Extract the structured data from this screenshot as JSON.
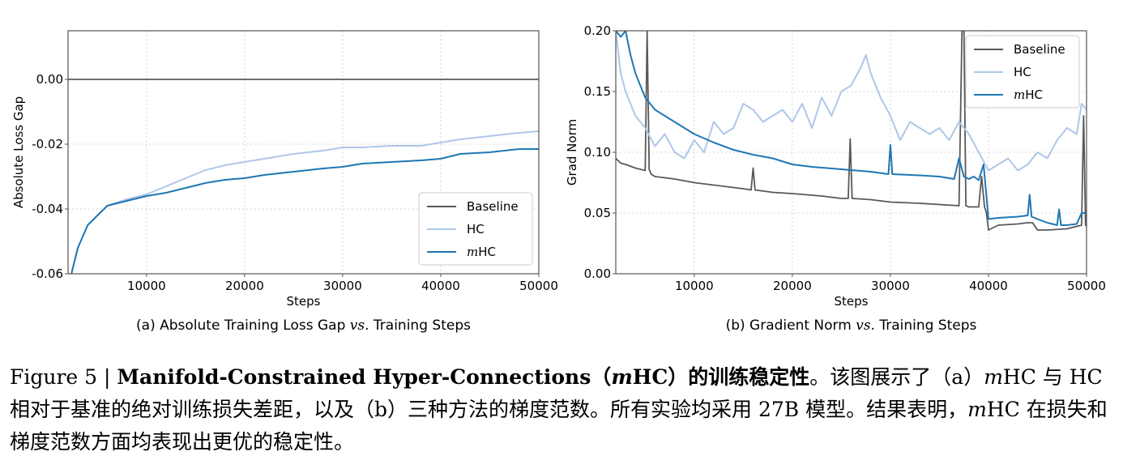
{
  "colors": {
    "baseline": "#595959",
    "hc": "#aec7e8",
    "mhc": "#1f77b4",
    "grid": "#d4d4d4",
    "axis": "#555555"
  },
  "chart_data": [
    {
      "type": "line",
      "sublabel_prefix": "(a) Absolute Training Loss Gap",
      "sublabel_vs": "vs.",
      "sublabel_suffix": "Training Steps",
      "xlabel": "Steps",
      "ylabel": "Absolute Loss Gap",
      "xlim": [
        2000,
        50000
      ],
      "ylim": [
        -0.06,
        0.015
      ],
      "xticks": [
        10000,
        20000,
        30000,
        40000,
        50000
      ],
      "xtick_labels": [
        "10000",
        "20000",
        "30000",
        "40000",
        "50000"
      ],
      "yticks": [
        0.0,
        -0.02,
        -0.04,
        -0.06
      ],
      "ytick_labels": [
        "0.00",
        "-0.02",
        "-0.04",
        "-0.06"
      ],
      "grid": true,
      "legend_position": "lower-right",
      "legend": [
        {
          "series": "Baseline",
          "label": "Baseline"
        },
        {
          "series": "HC",
          "label": "HC"
        },
        {
          "series": "mHC",
          "prefix": "m",
          "label": "HC"
        }
      ],
      "series": [
        {
          "name": "Baseline",
          "color": "baseline",
          "x": [
            2000,
            50000
          ],
          "y": [
            0.0,
            0.0
          ]
        },
        {
          "name": "HC",
          "color": "hc",
          "x": [
            2000,
            2500,
            3000,
            4000,
            5000,
            6000,
            8000,
            10000,
            12000,
            14000,
            16000,
            18000,
            20000,
            22000,
            25000,
            28000,
            30000,
            32000,
            35000,
            38000,
            40000,
            42000,
            45000,
            48000,
            50000
          ],
          "y": [
            -0.0645,
            -0.058,
            -0.052,
            -0.045,
            -0.042,
            -0.039,
            -0.037,
            -0.0355,
            -0.033,
            -0.0305,
            -0.028,
            -0.0265,
            -0.0255,
            -0.0245,
            -0.023,
            -0.022,
            -0.021,
            -0.021,
            -0.0205,
            -0.0205,
            -0.0195,
            -0.0185,
            -0.0175,
            -0.0165,
            -0.016
          ]
        },
        {
          "name": "mHC",
          "color": "mhc",
          "x": [
            2000,
            2500,
            3000,
            4000,
            5000,
            6000,
            8000,
            10000,
            12000,
            14000,
            16000,
            18000,
            20000,
            22000,
            25000,
            28000,
            30000,
            32000,
            35000,
            38000,
            40000,
            42000,
            45000,
            48000,
            50000
          ],
          "y": [
            -0.0645,
            -0.058,
            -0.052,
            -0.045,
            -0.042,
            -0.039,
            -0.0375,
            -0.036,
            -0.035,
            -0.0335,
            -0.032,
            -0.031,
            -0.0305,
            -0.0295,
            -0.0285,
            -0.0275,
            -0.027,
            -0.026,
            -0.0255,
            -0.025,
            -0.0245,
            -0.023,
            -0.0225,
            -0.0215,
            -0.0215
          ]
        }
      ]
    },
    {
      "type": "line",
      "sublabel_prefix": "(b) Gradient Norm",
      "sublabel_vs": "vs.",
      "sublabel_suffix": "Training Steps",
      "xlabel": "Steps",
      "ylabel": "Grad Norm",
      "xlim": [
        2000,
        50000
      ],
      "ylim": [
        0.0,
        0.2
      ],
      "xticks": [
        10000,
        20000,
        30000,
        40000,
        50000
      ],
      "xtick_labels": [
        "10000",
        "20000",
        "30000",
        "40000",
        "50000"
      ],
      "yticks": [
        0.0,
        0.05,
        0.1,
        0.15,
        0.2
      ],
      "ytick_labels": [
        "0.00",
        "0.05",
        "0.10",
        "0.15",
        "0.20"
      ],
      "grid": true,
      "legend_position": "upper-right",
      "legend": [
        {
          "series": "Baseline",
          "label": "Baseline"
        },
        {
          "series": "HC",
          "label": "HC"
        },
        {
          "series": "mHC",
          "prefix": "m",
          "label": "HC"
        }
      ],
      "series": [
        {
          "name": "Baseline",
          "color": "baseline",
          "x": [
            2000,
            2500,
            3000,
            4000,
            5000,
            5200,
            5400,
            5600,
            5800,
            6000,
            8000,
            10000,
            12000,
            15000,
            15800,
            16000,
            16200,
            18000,
            20000,
            23000,
            25000,
            25700,
            25900,
            26100,
            28000,
            30000,
            33000,
            35000,
            37000,
            37300,
            37500,
            37700,
            38000,
            39000,
            39300,
            39600,
            39800,
            40000,
            41000,
            43000,
            44000,
            44500,
            45000,
            46000,
            48000,
            49500,
            49700,
            49900,
            50000
          ],
          "y": [
            0.095,
            0.091,
            0.09,
            0.087,
            0.085,
            0.2,
            0.086,
            0.082,
            0.081,
            0.08,
            0.078,
            0.075,
            0.073,
            0.07,
            0.069,
            0.087,
            0.069,
            0.067,
            0.066,
            0.064,
            0.062,
            0.062,
            0.111,
            0.062,
            0.061,
            0.059,
            0.058,
            0.057,
            0.056,
            0.2,
            0.2,
            0.056,
            0.055,
            0.055,
            0.08,
            0.055,
            0.05,
            0.036,
            0.04,
            0.041,
            0.042,
            0.042,
            0.036,
            0.036,
            0.037,
            0.04,
            0.13,
            0.04,
            0.039
          ]
        },
        {
          "name": "HC",
          "color": "hc",
          "x": [
            2000,
            2500,
            3000,
            4000,
            5000,
            6000,
            7000,
            8000,
            9000,
            10000,
            11000,
            12000,
            13000,
            14000,
            15000,
            16000,
            17000,
            18000,
            19000,
            20000,
            21000,
            22000,
            23000,
            24000,
            25000,
            26000,
            27000,
            27500,
            28000,
            29000,
            30000,
            31000,
            32000,
            33000,
            34000,
            35000,
            36000,
            37000,
            38000,
            39000,
            40000,
            41000,
            42000,
            43000,
            44000,
            45000,
            46000,
            47000,
            48000,
            49000,
            49500,
            50000
          ],
          "y": [
            0.2,
            0.165,
            0.15,
            0.13,
            0.12,
            0.105,
            0.115,
            0.1,
            0.095,
            0.11,
            0.1,
            0.125,
            0.115,
            0.12,
            0.14,
            0.135,
            0.125,
            0.13,
            0.135,
            0.125,
            0.14,
            0.12,
            0.145,
            0.13,
            0.15,
            0.155,
            0.17,
            0.18,
            0.165,
            0.145,
            0.13,
            0.11,
            0.125,
            0.12,
            0.115,
            0.12,
            0.11,
            0.125,
            0.115,
            0.1,
            0.085,
            0.09,
            0.095,
            0.085,
            0.09,
            0.1,
            0.095,
            0.11,
            0.12,
            0.115,
            0.14,
            0.135
          ]
        },
        {
          "name": "mHC",
          "color": "mhc",
          "x": [
            2000,
            2500,
            3000,
            3500,
            4000,
            5000,
            6000,
            7000,
            8000,
            10000,
            12000,
            14000,
            16000,
            18000,
            20000,
            22000,
            25000,
            28000,
            29800,
            30000,
            30200,
            33000,
            35000,
            36500,
            37000,
            37500,
            38000,
            38500,
            39000,
            39500,
            40000,
            41000,
            43000,
            44000,
            44200,
            44400,
            45000,
            46000,
            47000,
            47200,
            47400,
            48000,
            49000,
            49500,
            50000
          ],
          "y": [
            0.2,
            0.195,
            0.2,
            0.18,
            0.165,
            0.145,
            0.135,
            0.13,
            0.125,
            0.115,
            0.108,
            0.102,
            0.098,
            0.095,
            0.09,
            0.088,
            0.086,
            0.084,
            0.082,
            0.106,
            0.082,
            0.081,
            0.08,
            0.078,
            0.095,
            0.08,
            0.078,
            0.08,
            0.077,
            0.09,
            0.045,
            0.046,
            0.047,
            0.048,
            0.065,
            0.047,
            0.045,
            0.042,
            0.04,
            0.053,
            0.04,
            0.04,
            0.041,
            0.05,
            0.05
          ]
        }
      ]
    }
  ],
  "caption": {
    "lead": "Figure 5 | ",
    "title_a": "Manifold-Constrained Hyper-Connections（",
    "title_m": "m",
    "title_b": "HC）的训练稳定性",
    "body_1": "。该图展示了（a）",
    "body_m1": "m",
    "body_2": "HC 与 HC 相对于基准的绝对训练损失差距，以及（b）三种方法的梯度范数。所有实验均采用 27B 模型。结果表明，",
    "body_m2": "m",
    "body_3": "HC 在损失和梯度范数方面均表现出更优的稳定性。"
  }
}
